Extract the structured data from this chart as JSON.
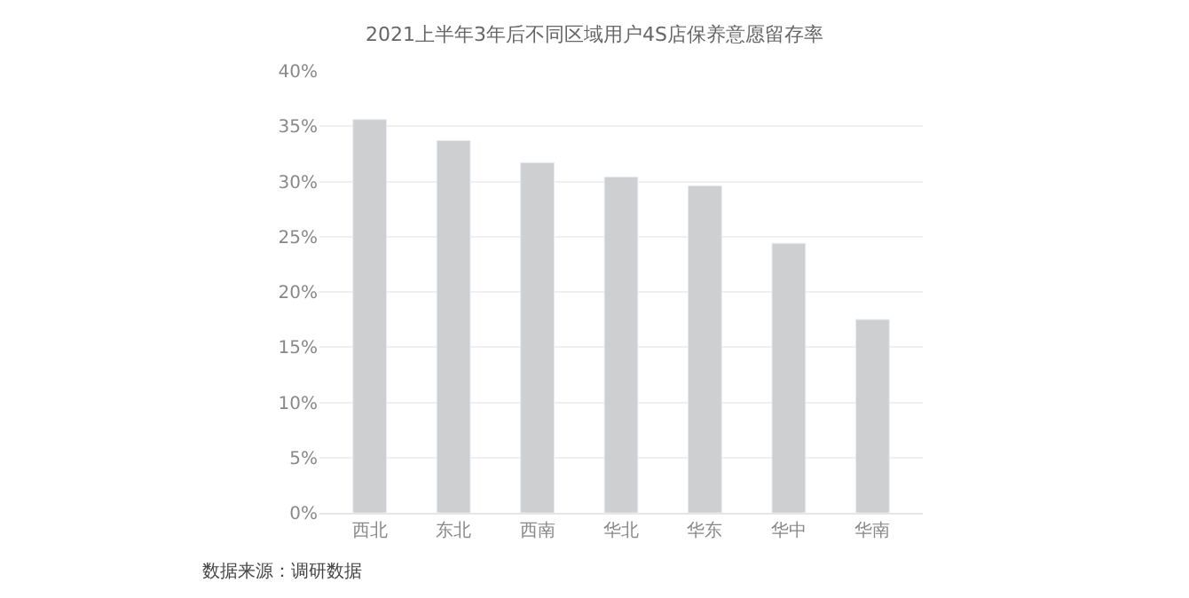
{
  "chart_data": {
    "type": "bar",
    "title": "2021上半年3年后不同区域用户4S店保养意愿留存率",
    "categories": [
      "西北",
      "东北",
      "西南",
      "华北",
      "华东",
      "华中",
      "华南"
    ],
    "values": [
      35.6,
      33.7,
      31.7,
      30.4,
      29.6,
      24.4,
      17.5
    ],
    "color": "#cdcfd1",
    "ylim": [
      0,
      40
    ],
    "yticks": [
      {
        "value": 0,
        "label": "0%"
      },
      {
        "value": 5,
        "label": "5%"
      },
      {
        "value": 10,
        "label": "10%"
      },
      {
        "value": 15,
        "label": "15%"
      },
      {
        "value": 20,
        "label": "20%"
      },
      {
        "value": 25,
        "label": "25%"
      },
      {
        "value": 30,
        "label": "30%"
      },
      {
        "value": 35,
        "label": "35%"
      },
      {
        "value": 40,
        "label": "40%"
      }
    ],
    "grid": "y",
    "annotations": [
      "数据来源：调研数据"
    ]
  }
}
